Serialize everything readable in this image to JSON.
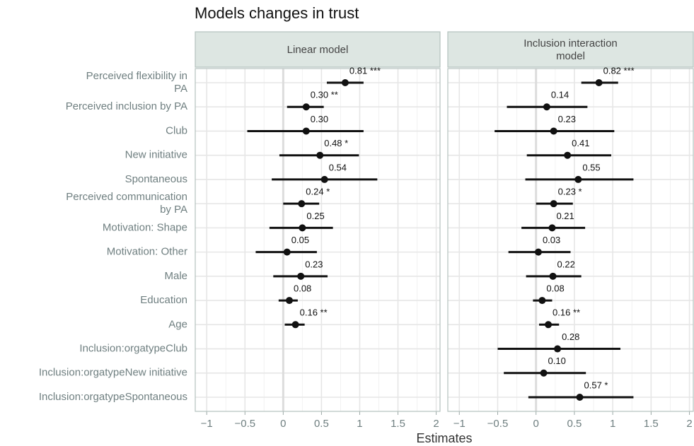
{
  "chart_data": {
    "type": "forest",
    "title": "Models changes in trust",
    "xlabel": "Estimates",
    "categories": [
      "Perceived flexibility in\nPA",
      "Perceived inclusion by PA",
      "Club",
      "New initiative",
      "Spontaneous",
      "Perceived communication\nby PA",
      "Motivation: Shape",
      "Motivation: Other",
      "Male",
      "Education",
      "Age",
      "Inclusion:orgatypeClub",
      "Inclusion:orgatypeNew initiative",
      "Inclusion:orgatypeSpontaneous"
    ],
    "xlim": [
      -1.15,
      2.05
    ],
    "xticks": [
      {
        "value": -1,
        "label": "−1"
      },
      {
        "value": -0.5,
        "label": "−0.5"
      },
      0,
      0.5,
      1,
      1.5,
      2
    ],
    "grid": true,
    "color": "#111111",
    "facets": [
      {
        "name": "Linear model",
        "values": [
          0.81,
          0.3,
          0.3,
          0.48,
          0.54,
          0.24,
          0.25,
          0.05,
          0.23,
          0.08,
          0.16,
          null,
          null,
          null
        ],
        "lower": [
          0.57,
          0.05,
          -0.47,
          -0.05,
          -0.15,
          0.0,
          -0.18,
          -0.36,
          -0.13,
          -0.06,
          0.02,
          null,
          null,
          null
        ],
        "upper": [
          1.05,
          0.53,
          1.05,
          0.99,
          1.23,
          0.47,
          0.65,
          0.44,
          0.58,
          0.19,
          0.28,
          null,
          null,
          null
        ],
        "value_labels": [
          "0.81 ***",
          "0.30 **",
          "0.30",
          "0.48 *",
          "0.54",
          "0.24 *",
          "0.25",
          "0.05",
          "0.23",
          "0.08",
          "0.16 **",
          null,
          null,
          null
        ]
      },
      {
        "name": "Inclusion interaction\nmodel",
        "values": [
          0.82,
          0.14,
          0.23,
          0.41,
          0.55,
          0.23,
          0.21,
          0.03,
          0.22,
          0.08,
          0.16,
          0.28,
          0.1,
          0.57
        ],
        "lower": [
          0.59,
          -0.38,
          -0.54,
          -0.12,
          -0.14,
          0.0,
          -0.19,
          -0.36,
          -0.13,
          -0.04,
          0.04,
          -0.5,
          -0.42,
          -0.1
        ],
        "upper": [
          1.07,
          0.67,
          1.02,
          0.98,
          1.27,
          0.48,
          0.64,
          0.45,
          0.59,
          0.21,
          0.3,
          1.1,
          0.65,
          1.27
        ],
        "value_labels": [
          "0.82 ***",
          "0.14",
          "0.23",
          "0.41",
          "0.55",
          "0.23 *",
          "0.21",
          "0.03",
          "0.22",
          "0.08",
          "0.16 **",
          "0.28",
          "0.10",
          "0.57 *"
        ]
      }
    ]
  }
}
